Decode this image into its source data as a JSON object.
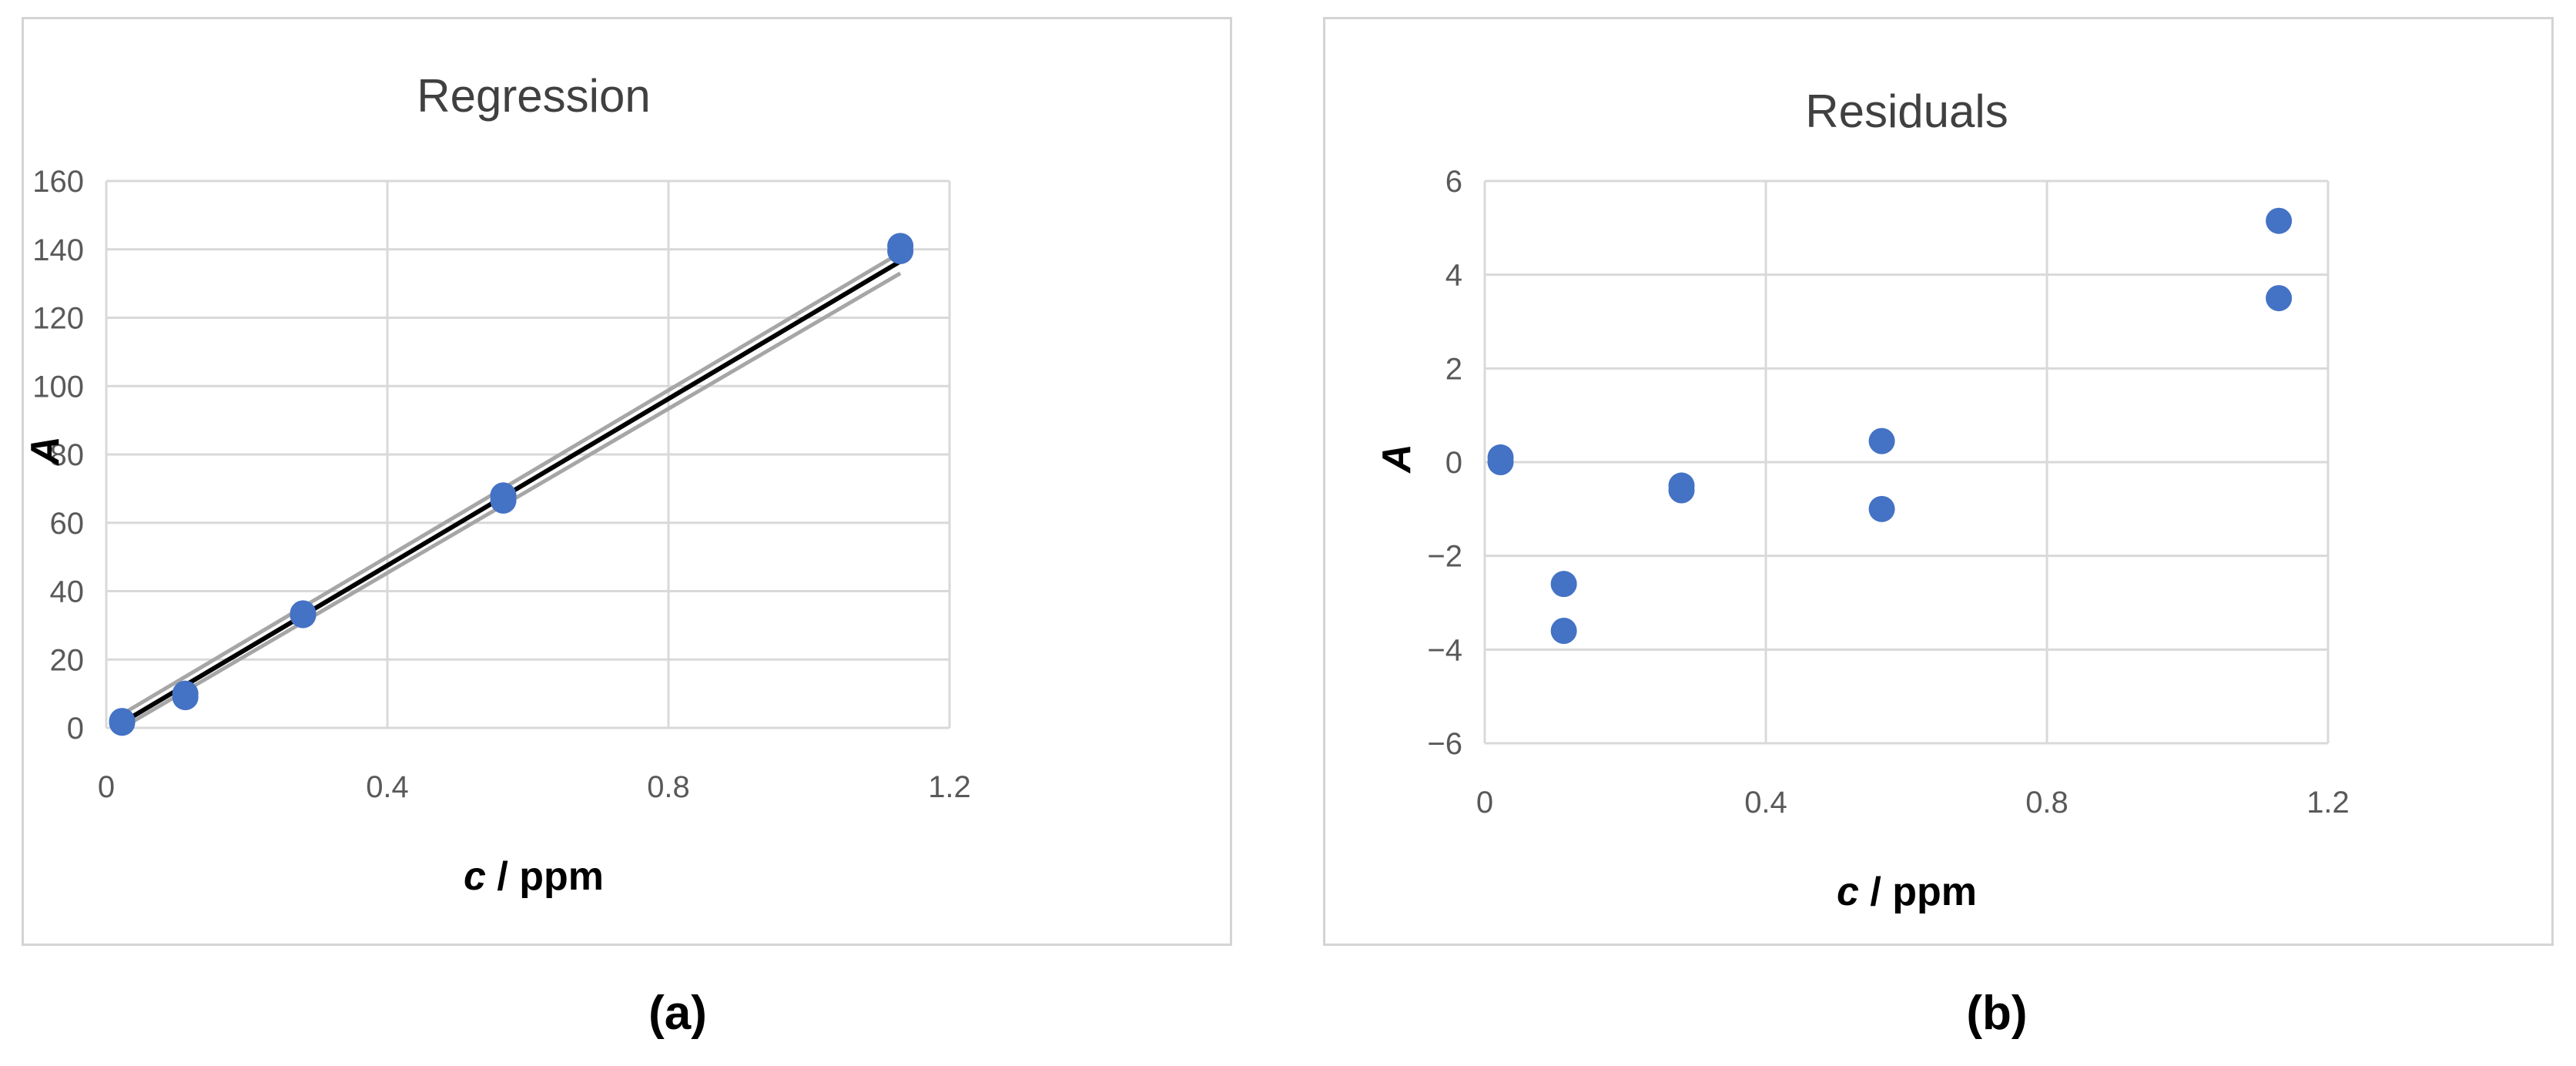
{
  "chart_data": [
    {
      "type": "scatter",
      "title": "Regression",
      "xlabel_var": "c",
      "xlabel_unit": " / ppm",
      "ylabel": "A",
      "xlim": [
        0,
        1.2
      ],
      "ylim": [
        0,
        160
      ],
      "x_ticks": [
        0,
        0.4,
        0.8,
        1.2
      ],
      "x_tick_labels": [
        "0",
        "0.4",
        "0.8",
        "1.2"
      ],
      "y_ticks": [
        0,
        20,
        40,
        60,
        80,
        100,
        120,
        140,
        160
      ],
      "y_tick_labels": [
        "0",
        "20",
        "40",
        "60",
        "80",
        "100",
        "120",
        "140",
        "160"
      ],
      "grid": true,
      "series": [
        {
          "marker_color": "#4472C4",
          "points": [
            [
              0.0225,
              1.5
            ],
            [
              0.0225,
              2.0
            ],
            [
              0.1125,
              9.0
            ],
            [
              0.1125,
              10.0
            ],
            [
              0.28,
              33.0
            ],
            [
              0.28,
              33.5
            ],
            [
              0.565,
              66.5
            ],
            [
              0.565,
              68.0
            ],
            [
              1.13,
              139.5
            ],
            [
              1.13,
              141.0
            ]
          ]
        }
      ],
      "lines": [
        {
          "role": "fit",
          "color": "#000000",
          "points": [
            [
              0.0225,
              1.5
            ],
            [
              1.13,
              136.5
            ]
          ]
        },
        {
          "role": "upper-band",
          "color": "#a6a6a6",
          "points": [
            [
              0.0225,
              4.0
            ],
            [
              1.13,
              139.0
            ]
          ]
        },
        {
          "role": "lower-band",
          "color": "#a6a6a6",
          "points": [
            [
              0.0225,
              0.0
            ],
            [
              1.13,
              133.0
            ]
          ]
        }
      ]
    },
    {
      "type": "scatter",
      "title": "Residuals",
      "xlabel_var": "c",
      "xlabel_unit": " / ppm",
      "ylabel": "A",
      "xlim": [
        0,
        1.2
      ],
      "ylim": [
        -6,
        6
      ],
      "x_ticks": [
        0,
        0.4,
        0.8,
        1.2
      ],
      "x_tick_labels": [
        "0",
        "0.4",
        "0.8",
        "1.2"
      ],
      "y_ticks": [
        -6,
        -4,
        -2,
        0,
        2,
        4,
        6
      ],
      "y_tick_labels": [
        "−6",
        "−4",
        "−2",
        "0",
        "2",
        "4",
        "6"
      ],
      "grid": true,
      "series": [
        {
          "marker_color": "#4472C4",
          "points": [
            [
              0.0225,
              0.1
            ],
            [
              0.0225,
              0.0
            ],
            [
              0.1125,
              -2.6
            ],
            [
              0.1125,
              -3.6
            ],
            [
              0.28,
              -0.5
            ],
            [
              0.28,
              -0.6
            ],
            [
              0.565,
              0.45
            ],
            [
              0.565,
              -1.0
            ],
            [
              1.13,
              5.15
            ],
            [
              1.13,
              3.5
            ]
          ]
        }
      ],
      "lines": []
    }
  ],
  "panel_labels": [
    "(a)",
    "(b)"
  ]
}
